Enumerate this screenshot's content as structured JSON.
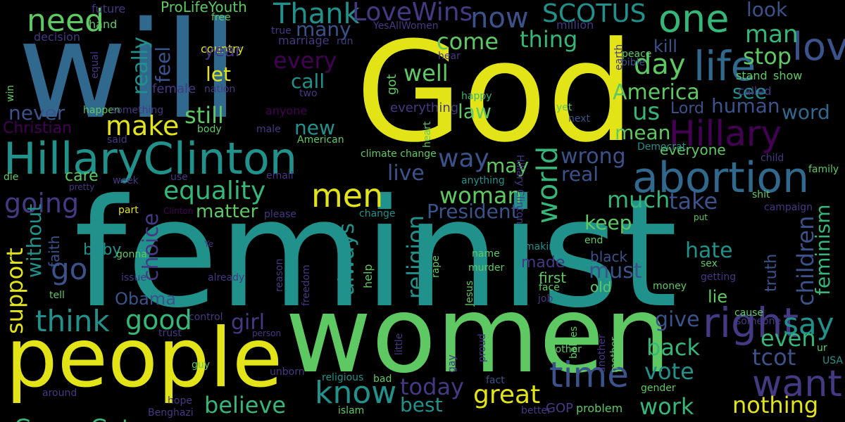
{
  "palette": {
    "yellow": "#e3e418",
    "lightgreen": "#5ec962",
    "green": "#35b779",
    "teal": "#21918c",
    "blue": "#31688e",
    "indigo": "#443983",
    "purple": "#440154",
    "darkblue": "#3b528b"
  },
  "words": [
    {
      "text": "feminist",
      "color": "teal"
    },
    {
      "text": "God",
      "color": "yellow"
    },
    {
      "text": "will",
      "color": "blue"
    },
    {
      "text": "women",
      "color": "lightgreen"
    },
    {
      "text": "people",
      "color": "yellow"
    },
    {
      "text": "HillaryClinton",
      "color": "teal"
    },
    {
      "text": "abortion",
      "color": "blue"
    },
    {
      "text": "Hillary",
      "color": "purple"
    },
    {
      "text": "one",
      "color": "green"
    },
    {
      "text": "life",
      "color": "blue"
    },
    {
      "text": "love",
      "color": "darkblue"
    },
    {
      "text": "right",
      "color": "indigo"
    },
    {
      "text": "want",
      "color": "indigo"
    },
    {
      "text": "time",
      "color": "darkblue"
    },
    {
      "text": "need",
      "color": "lightgreen"
    },
    {
      "text": "now",
      "color": "darkblue"
    },
    {
      "text": "men",
      "color": "yellow"
    },
    {
      "text": "equality",
      "color": "green"
    },
    {
      "text": "think",
      "color": "teal"
    },
    {
      "text": "good",
      "color": "green"
    },
    {
      "text": "know",
      "color": "teal"
    },
    {
      "text": "say",
      "color": "teal"
    },
    {
      "text": "make",
      "color": "yellow"
    },
    {
      "text": "world",
      "color": "green"
    },
    {
      "text": "Thank",
      "color": "teal"
    },
    {
      "text": "LoveWins",
      "color": "indigo"
    },
    {
      "text": "SCOTUS",
      "color": "teal"
    },
    {
      "text": "man",
      "color": "green"
    },
    {
      "text": "day",
      "color": "lightgreen"
    },
    {
      "text": "go",
      "color": "darkblue"
    },
    {
      "text": "going",
      "color": "indigo"
    },
    {
      "text": "support",
      "color": "yellow"
    },
    {
      "text": "GamerGate",
      "color": "green"
    },
    {
      "text": "believe",
      "color": "green"
    },
    {
      "text": "today",
      "color": "indigo"
    },
    {
      "text": "great",
      "color": "yellow"
    },
    {
      "text": "nothing",
      "color": "yellow"
    },
    {
      "text": "work",
      "color": "green"
    },
    {
      "text": "back",
      "color": "green"
    },
    {
      "text": "vote",
      "color": "teal"
    },
    {
      "text": "even",
      "color": "green"
    },
    {
      "text": "tcot",
      "color": "darkblue"
    },
    {
      "text": "children",
      "color": "darkblue"
    },
    {
      "text": "feminism",
      "color": "green"
    },
    {
      "text": "woman",
      "color": "lightgreen"
    },
    {
      "text": "way",
      "color": "darkblue"
    },
    {
      "text": "live",
      "color": "darkblue"
    },
    {
      "text": "religion",
      "color": "teal"
    },
    {
      "text": "always",
      "color": "teal"
    },
    {
      "text": "well",
      "color": "lightgreen"
    },
    {
      "text": "come",
      "color": "lightgreen"
    },
    {
      "text": "thing",
      "color": "green"
    },
    {
      "text": "really",
      "color": "teal"
    },
    {
      "text": "feel",
      "color": "darkblue"
    },
    {
      "text": "year",
      "color": "indigo"
    },
    {
      "text": "many",
      "color": "darkblue"
    },
    {
      "text": "let",
      "color": "yellow"
    },
    {
      "text": "every",
      "color": "purple"
    },
    {
      "text": "call",
      "color": "teal"
    },
    {
      "text": "still",
      "color": "lightgreen"
    },
    {
      "text": "new",
      "color": "teal"
    },
    {
      "text": "never",
      "color": "darkblue"
    },
    {
      "text": "Christian",
      "color": "purple"
    },
    {
      "text": "care",
      "color": "lightgreen"
    },
    {
      "text": "matter",
      "color": "lightgreen"
    },
    {
      "text": "choice",
      "color": "indigo"
    },
    {
      "text": "without",
      "color": "teal"
    },
    {
      "text": "faith",
      "color": "darkblue"
    },
    {
      "text": "baby",
      "color": "teal"
    },
    {
      "text": "Obama",
      "color": "darkblue"
    },
    {
      "text": "girl",
      "color": "indigo"
    },
    {
      "text": "best",
      "color": "teal"
    },
    {
      "text": "America",
      "color": "lightgreen"
    },
    {
      "text": "see",
      "color": "teal"
    },
    {
      "text": "us",
      "color": "green"
    },
    {
      "text": "human",
      "color": "darkblue"
    },
    {
      "text": "word",
      "color": "blue"
    },
    {
      "text": "Lord",
      "color": "darkblue"
    },
    {
      "text": "kill",
      "color": "darkblue"
    },
    {
      "text": "stop",
      "color": "lightgreen"
    },
    {
      "text": "look",
      "color": "darkblue"
    },
    {
      "text": "mean",
      "color": "lightgreen"
    },
    {
      "text": "everyone",
      "color": "lightgreen"
    },
    {
      "text": "law",
      "color": "lightgreen"
    },
    {
      "text": "wrong",
      "color": "darkblue"
    },
    {
      "text": "real",
      "color": "darkblue"
    },
    {
      "text": "may",
      "color": "lightgreen"
    },
    {
      "text": "much",
      "color": "green"
    },
    {
      "text": "take",
      "color": "darkblue"
    },
    {
      "text": "keep",
      "color": "lightgreen"
    },
    {
      "text": "President",
      "color": "darkblue"
    },
    {
      "text": "must",
      "color": "darkblue"
    },
    {
      "text": "hate",
      "color": "teal"
    },
    {
      "text": "give",
      "color": "darkblue"
    },
    {
      "text": "made",
      "color": "indigo"
    },
    {
      "text": "black",
      "color": "darkblue"
    },
    {
      "text": "first",
      "color": "lightgreen"
    },
    {
      "text": "old",
      "color": "lightgreen"
    },
    {
      "text": "truth",
      "color": "darkblue"
    },
    {
      "text": "lie",
      "color": "lightgreen"
    },
    {
      "text": "ProLifeYouth",
      "color": "lightgreen"
    },
    {
      "text": "YesAllWomen",
      "color": "indigo"
    },
    {
      "text": "million",
      "color": "indigo"
    },
    {
      "text": "future",
      "color": "indigo"
    },
    {
      "text": "hand",
      "color": "lightgreen"
    },
    {
      "text": "free",
      "color": "lightgreen"
    },
    {
      "text": "decision",
      "color": "indigo"
    },
    {
      "text": "country",
      "color": "yellow"
    },
    {
      "text": "marriage",
      "color": "indigo"
    },
    {
      "text": "run",
      "color": "indigo"
    },
    {
      "text": "true",
      "color": "indigo"
    },
    {
      "text": "peace",
      "color": "lightgreen"
    },
    {
      "text": "earth",
      "color": "indigo"
    },
    {
      "text": "hear",
      "color": "indigo"
    },
    {
      "text": "bible",
      "color": "darkblue"
    },
    {
      "text": "stand",
      "color": "lightgreen"
    },
    {
      "text": "show",
      "color": "lightgreen"
    },
    {
      "text": "called",
      "color": "indigo"
    },
    {
      "text": "happy",
      "color": "green"
    },
    {
      "text": "Hillary Clinton",
      "color": "indigo"
    },
    {
      "text": "nation",
      "color": "indigo"
    },
    {
      "text": "equal",
      "color": "indigo"
    },
    {
      "text": "win",
      "color": "lightgreen"
    },
    {
      "text": "female",
      "color": "indigo"
    },
    {
      "text": "last",
      "color": "lightgreen"
    },
    {
      "text": "happen",
      "color": "lightgreen"
    },
    {
      "text": "something",
      "color": "indigo"
    },
    {
      "text": "anyone",
      "color": "purple"
    },
    {
      "text": "two",
      "color": "indigo"
    },
    {
      "text": "yet",
      "color": "lightgreen"
    },
    {
      "text": "next",
      "color": "darkblue"
    },
    {
      "text": "got",
      "color": "lightgreen"
    },
    {
      "text": "everything",
      "color": "indigo"
    },
    {
      "text": "heart",
      "color": "lightgreen"
    },
    {
      "text": "body",
      "color": "lightgreen"
    },
    {
      "text": "male",
      "color": "indigo"
    },
    {
      "text": "American",
      "color": "lightgreen"
    },
    {
      "text": "said",
      "color": "indigo"
    },
    {
      "text": "Democrat",
      "color": "teal"
    },
    {
      "text": "climate change",
      "color": "lightgreen"
    },
    {
      "text": "email",
      "color": "indigo"
    },
    {
      "text": "anything",
      "color": "teal"
    },
    {
      "text": "die",
      "color": "lightgreen"
    },
    {
      "text": "use",
      "color": "indigo"
    },
    {
      "text": "pretty",
      "color": "indigo"
    },
    {
      "text": "week",
      "color": "indigo"
    },
    {
      "text": "family",
      "color": "lightgreen"
    },
    {
      "text": "child",
      "color": "indigo"
    },
    {
      "text": "shit",
      "color": "lightgreen"
    },
    {
      "text": "campaign",
      "color": "indigo"
    },
    {
      "text": "put",
      "color": "lightgreen"
    },
    {
      "text": "part",
      "color": "yellow"
    },
    {
      "text": "Clinton",
      "color": "purple"
    },
    {
      "text": "please",
      "color": "indigo"
    },
    {
      "text": "change",
      "color": "teal"
    },
    {
      "text": "help",
      "color": "lightgreen"
    },
    {
      "text": "gonna",
      "color": "lightgreen"
    },
    {
      "text": "Ye",
      "color": "indigo"
    },
    {
      "text": "end",
      "color": "lightgreen"
    },
    {
      "text": "making",
      "color": "teal"
    },
    {
      "text": "sex",
      "color": "lightgreen"
    },
    {
      "text": "issue",
      "color": "indigo"
    },
    {
      "text": "already",
      "color": "indigo"
    },
    {
      "text": "reason",
      "color": "indigo"
    },
    {
      "text": "freedom",
      "color": "indigo"
    },
    {
      "text": "rape",
      "color": "lightgreen"
    },
    {
      "text": "name",
      "color": "lightgreen"
    },
    {
      "text": "murder",
      "color": "lightgreen"
    },
    {
      "text": "face",
      "color": "lightgreen"
    },
    {
      "text": "job",
      "color": "indigo"
    },
    {
      "text": "money",
      "color": "lightgreen"
    },
    {
      "text": "getting",
      "color": "indigo"
    },
    {
      "text": "tell",
      "color": "lightgreen"
    },
    {
      "text": "Jesus",
      "color": "lightgreen"
    },
    {
      "text": "control",
      "color": "indigo"
    },
    {
      "text": "trust",
      "color": "indigo"
    },
    {
      "text": "person",
      "color": "indigo"
    },
    {
      "text": "cause",
      "color": "lightgreen"
    },
    {
      "text": "someone",
      "color": "indigo"
    },
    {
      "text": "gay",
      "color": "indigo"
    },
    {
      "text": "little",
      "color": "indigo"
    },
    {
      "text": "proud",
      "color": "indigo"
    },
    {
      "text": "babies",
      "color": "lightgreen"
    },
    {
      "text": "another",
      "color": "indigo"
    },
    {
      "text": "mother",
      "color": "lightgreen"
    },
    {
      "text": "fact",
      "color": "darkblue"
    },
    {
      "text": "ur",
      "color": "lightgreen"
    },
    {
      "text": "USA",
      "color": "teal"
    },
    {
      "text": "guy",
      "color": "lightgreen"
    },
    {
      "text": "unborn",
      "color": "indigo"
    },
    {
      "text": "religious",
      "color": "teal"
    },
    {
      "text": "bad",
      "color": "lightgreen"
    },
    {
      "text": "gender",
      "color": "lightgreen"
    },
    {
      "text": "around",
      "color": "indigo"
    },
    {
      "text": "hope",
      "color": "indigo"
    },
    {
      "text": "Benghazi",
      "color": "indigo"
    },
    {
      "text": "islam",
      "color": "lightgreen"
    },
    {
      "text": "GOP",
      "color": "indigo"
    },
    {
      "text": "better",
      "color": "indigo"
    },
    {
      "text": "problem",
      "color": "lightgreen"
    }
  ]
}
